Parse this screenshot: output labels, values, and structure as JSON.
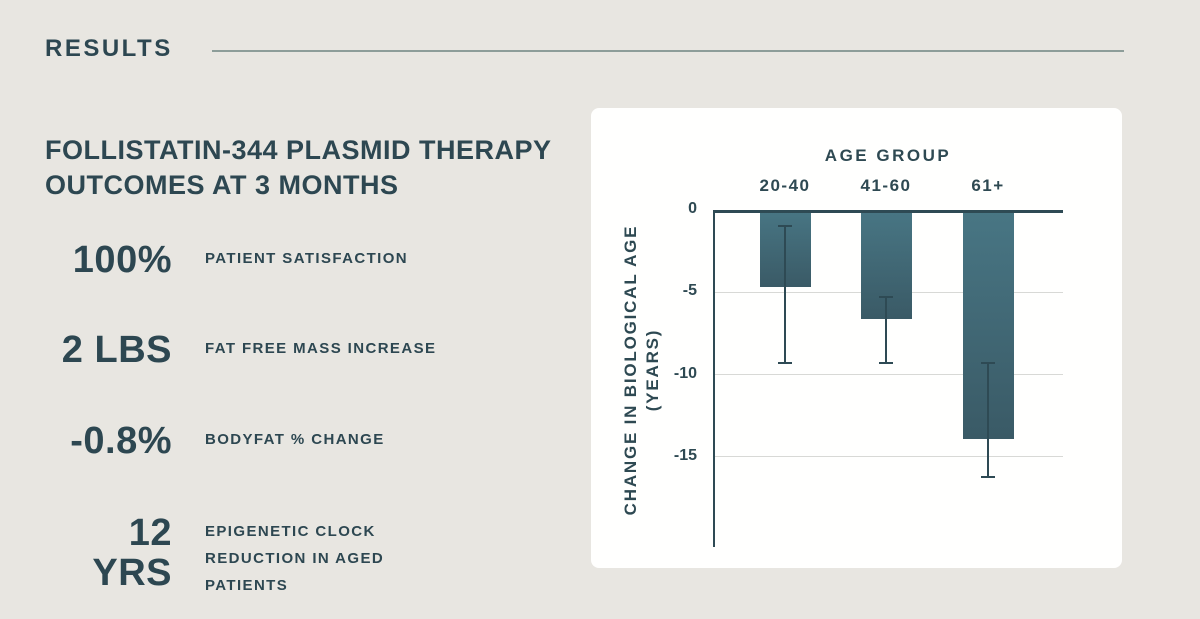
{
  "page": {
    "background_color": "#e8e6e1",
    "panel_color": "#fffffe",
    "text_color": "#2d4751",
    "divider_color": "#8d9d99"
  },
  "header": {
    "title": "RESULTS"
  },
  "summary": {
    "title_line1": "FOLLISTATIN-344 PLASMID THERAPY",
    "title_line2": "OUTCOMES AT 3 MONTHS",
    "stats": [
      {
        "value": "100%",
        "label": "PATIENT SATISFACTION"
      },
      {
        "value": "2 LBS",
        "label": "FAT FREE MASS INCREASE"
      },
      {
        "value": "-0.8%",
        "label": "BODYFAT % CHANGE"
      },
      {
        "value": "12 YRS",
        "label": "EPIGENETIC CLOCK REDUCTION IN AGED PATIENTS"
      }
    ]
  },
  "chart_data": {
    "type": "bar",
    "title": "AGE GROUP",
    "categories": [
      "20-40",
      "41-60",
      "61+"
    ],
    "values": [
      -4.7,
      -6.6,
      -13.9
    ],
    "error_whiskers": [
      [
        -1.0,
        -9.3
      ],
      [
        -5.3,
        -9.3
      ],
      [
        -9.3,
        -16.2
      ]
    ],
    "ylabel_line1": "CHANGE IN BIOLOGICAL AGE",
    "ylabel_line2": "(YEARS)",
    "yticks": [
      0,
      -5,
      -10,
      -15
    ],
    "ylim": [
      0,
      -20.4
    ],
    "grid": true,
    "legend": "none",
    "bar_color_top": "#487684",
    "bar_color_bottom": "#3a5a66",
    "axis_color": "#2e4a54",
    "gridline_color": "#d8d9d6"
  }
}
